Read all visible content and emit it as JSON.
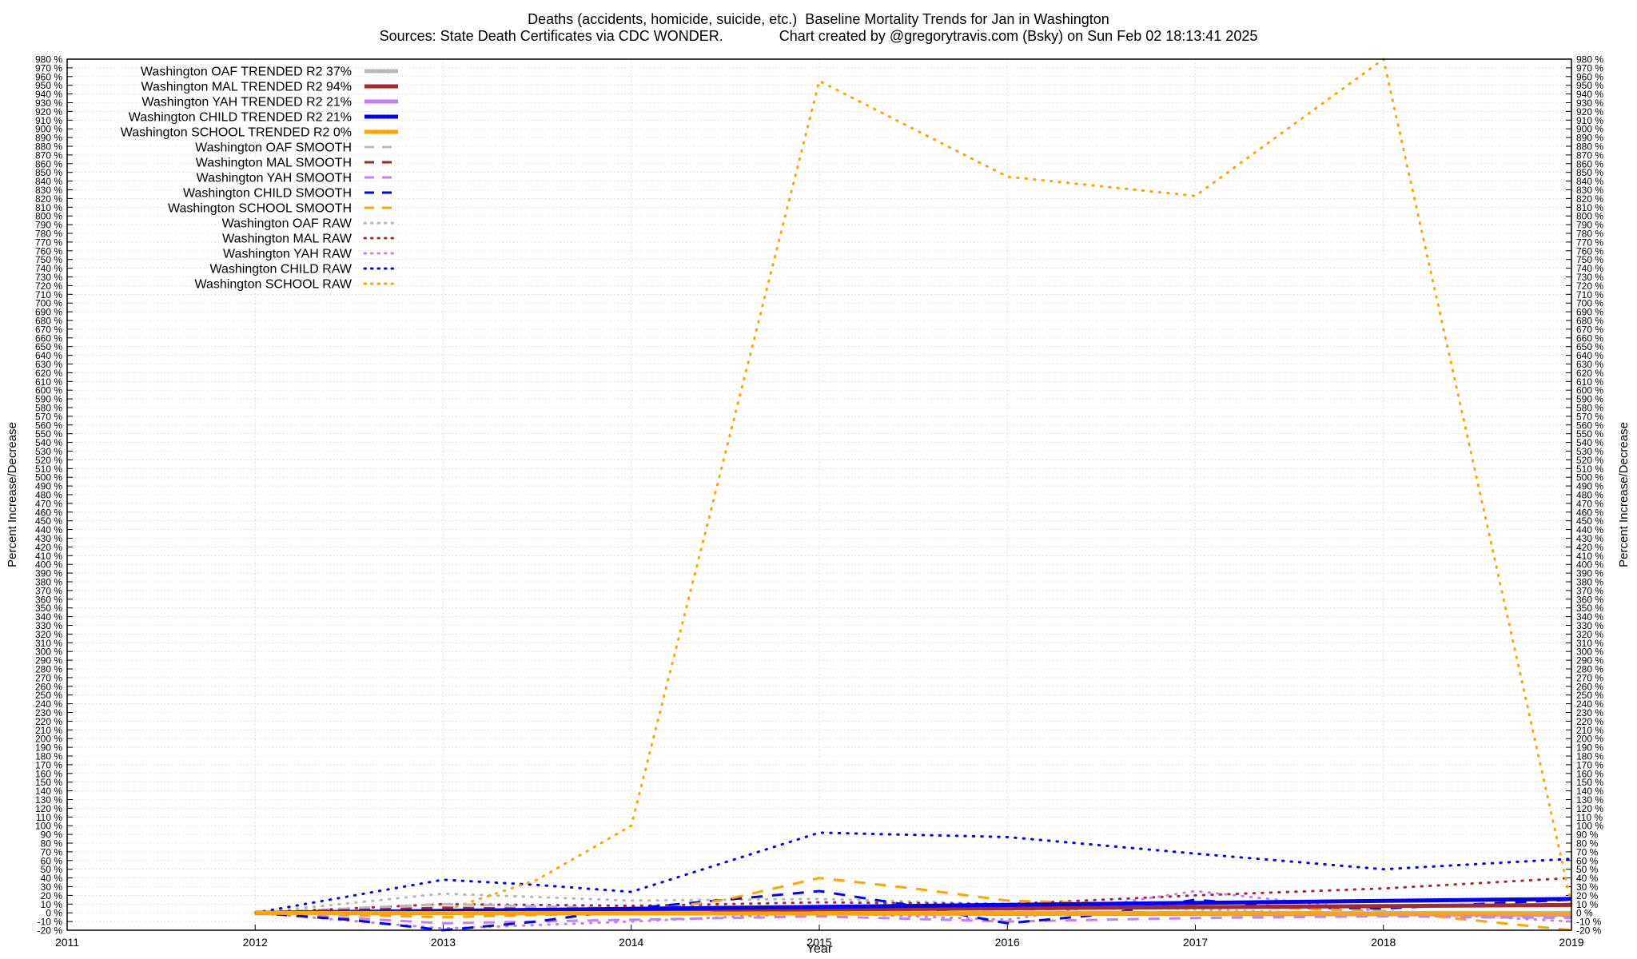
{
  "chart_data": {
    "type": "line",
    "title_line1": "Deaths (accidents, homicide, suicide, etc.)  Baseline Mortality Trends for Jan in Washington",
    "title_line2": "Sources: State Death Certificates via CDC WONDER.              Chart created by @gregorytravis.com (Bsky) on Sun Feb 02 18:13:41 2025",
    "xlabel": "Year",
    "ylabel": "Percent Increase/Decrease",
    "y2label": "Percent Increase/Decrease",
    "xlim": [
      2011,
      2019
    ],
    "ylim": [
      -20,
      980
    ],
    "x_ticks": [
      2011,
      2012,
      2013,
      2014,
      2015,
      2016,
      2017,
      2018,
      2019
    ],
    "y_tick_step": 10,
    "y_tick_suffix": " %",
    "grid": true,
    "legend_position": "top-left",
    "series": [
      {
        "name": "Washington OAF TRENDED R2  37%",
        "style": "trend",
        "color": "#b8b8b8",
        "x": [
          2012,
          2019
        ],
        "y": [
          0,
          0
        ]
      },
      {
        "name": "Washington MAL TRENDED R2  94%",
        "style": "trend",
        "color": "#a52a2a",
        "x": [
          2012,
          2019
        ],
        "y": [
          0,
          9
        ]
      },
      {
        "name": "Washington YAH TRENDED R2  21%",
        "style": "trend",
        "color": "#c080ff",
        "x": [
          2012,
          2019
        ],
        "y": [
          0,
          -2
        ]
      },
      {
        "name": "Washington CHILD TRENDED R2  21%",
        "style": "trend",
        "color": "#0000ff",
        "x": [
          2012,
          2019
        ],
        "y": [
          0,
          16
        ]
      },
      {
        "name": "Washington SCHOOL TRENDED R2   0%",
        "style": "trend",
        "color": "#ffa500",
        "x": [
          2012,
          2019
        ],
        "y": [
          0,
          -1
        ]
      },
      {
        "name": "Washington OAF SMOOTH",
        "style": "smooth",
        "color": "#b8b8b8",
        "x": [
          2012,
          2013,
          2014,
          2015,
          2016,
          2017,
          2018,
          2019
        ],
        "y": [
          0,
          10,
          5,
          3,
          0,
          -2,
          -4,
          -5
        ]
      },
      {
        "name": "Washington MAL SMOOTH",
        "style": "smooth",
        "color": "#a52a2a",
        "x": [
          2012,
          2013,
          2014,
          2015,
          2016,
          2017,
          2018,
          2019
        ],
        "y": [
          0,
          6,
          3,
          5,
          4,
          6,
          7,
          10
        ]
      },
      {
        "name": "Washington YAH SMOOTH",
        "style": "smooth",
        "color": "#c080ff",
        "x": [
          2012,
          2013,
          2014,
          2015,
          2016,
          2017,
          2018,
          2019
        ],
        "y": [
          0,
          -12,
          -8,
          -4,
          -10,
          -6,
          -4,
          -6
        ]
      },
      {
        "name": "Washington CHILD SMOOTH",
        "style": "smooth",
        "color": "#0000ff",
        "x": [
          2012,
          2012.5,
          2013,
          2013.5,
          2014,
          2015,
          2015.5,
          2016,
          2016.5,
          2017,
          2017.5,
          2018,
          2019
        ],
        "y": [
          0,
          -8,
          -20,
          -10,
          5,
          25,
          8,
          -12,
          -2,
          15,
          6,
          5,
          15
        ]
      },
      {
        "name": "Washington SCHOOL SMOOTH",
        "style": "smooth",
        "color": "#ffa500",
        "x": [
          2012,
          2013,
          2014,
          2014.5,
          2015,
          2015.5,
          2016,
          2017,
          2018,
          2019
        ],
        "y": [
          0,
          -5,
          0,
          15,
          40,
          28,
          14,
          8,
          2,
          -20
        ]
      },
      {
        "name": "Washington OAF RAW",
        "style": "raw",
        "color": "#b8b8b8",
        "x": [
          2012,
          2013,
          2014,
          2015,
          2016,
          2017,
          2018,
          2019
        ],
        "y": [
          0,
          22,
          14,
          16,
          10,
          4,
          -2,
          -4
        ]
      },
      {
        "name": "Washington MAL RAW",
        "style": "raw",
        "color": "#a52a2a",
        "x": [
          2012,
          2013,
          2014,
          2015,
          2016,
          2017,
          2018,
          2019
        ],
        "y": [
          0,
          10,
          8,
          12,
          10,
          20,
          28,
          40
        ]
      },
      {
        "name": "Washington YAH RAW",
        "style": "raw",
        "color": "#c080ff",
        "x": [
          2012,
          2013,
          2014,
          2015,
          2016,
          2017,
          2018,
          2019
        ],
        "y": [
          0,
          -18,
          -10,
          0,
          -8,
          25,
          2,
          -10
        ]
      },
      {
        "name": "Washington CHILD RAW",
        "style": "raw",
        "color": "#0000ff",
        "x": [
          2012,
          2013,
          2013.5,
          2014,
          2015,
          2016,
          2017,
          2018,
          2019
        ],
        "y": [
          0,
          38,
          32,
          24,
          92,
          87,
          68,
          50,
          62
        ]
      },
      {
        "name": "Washington SCHOOL RAW",
        "style": "raw",
        "color": "#ffa500",
        "x": [
          2012,
          2013,
          2013.5,
          2014,
          2015,
          2016,
          2017,
          2018,
          2019
        ],
        "y": [
          0,
          2,
          38,
          100,
          955,
          845,
          823,
          980,
          10
        ]
      }
    ]
  }
}
